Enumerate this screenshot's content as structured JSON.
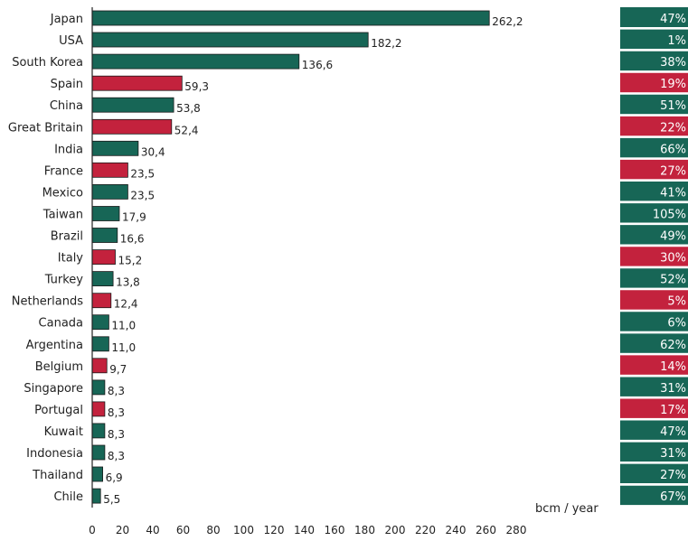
{
  "colors": {
    "green": "#176656",
    "red": "#c3223d",
    "axis": "#222222",
    "badge_text": "#ffffff",
    "text": "#222222"
  },
  "chart_data": {
    "type": "bar",
    "orientation": "horizontal",
    "title": "",
    "xlabel": "bcm / year",
    "ylabel": "",
    "xlim": [
      0,
      280
    ],
    "x_ticks": [
      "0",
      "20",
      "40",
      "60",
      "80",
      "100",
      "120",
      "140",
      "160",
      "180",
      "200",
      "220",
      "240",
      "260",
      "280"
    ],
    "grid": false,
    "legend": "none",
    "bars": [
      {
        "country": "Japan",
        "value": 262.2,
        "value_label": "262,2",
        "color": "green",
        "share": "47%"
      },
      {
        "country": "USA",
        "value": 182.2,
        "value_label": "182,2",
        "color": "green",
        "share": "1%"
      },
      {
        "country": "South Korea",
        "value": 136.6,
        "value_label": "136,6",
        "color": "green",
        "share": "38%"
      },
      {
        "country": "Spain",
        "value": 59.3,
        "value_label": "59,3",
        "color": "red",
        "share": "19%"
      },
      {
        "country": "China",
        "value": 53.8,
        "value_label": "53,8",
        "color": "green",
        "share": "51%"
      },
      {
        "country": "Great Britain",
        "value": 52.4,
        "value_label": "52,4",
        "color": "red",
        "share": "22%"
      },
      {
        "country": "India",
        "value": 30.4,
        "value_label": "30,4",
        "color": "green",
        "share": "66%"
      },
      {
        "country": "France",
        "value": 23.5,
        "value_label": "23,5",
        "color": "red",
        "share": "27%"
      },
      {
        "country": "Mexico",
        "value": 23.5,
        "value_label": "23,5",
        "color": "green",
        "share": "41%"
      },
      {
        "country": "Taiwan",
        "value": 17.9,
        "value_label": "17,9",
        "color": "green",
        "share": "105%"
      },
      {
        "country": "Brazil",
        "value": 16.6,
        "value_label": "16,6",
        "color": "green",
        "share": "49%"
      },
      {
        "country": "Italy",
        "value": 15.2,
        "value_label": "15,2",
        "color": "red",
        "share": "30%"
      },
      {
        "country": "Turkey",
        "value": 13.8,
        "value_label": "13,8",
        "color": "green",
        "share": "52%"
      },
      {
        "country": "Netherlands",
        "value": 12.4,
        "value_label": "12,4",
        "color": "red",
        "share": "5%"
      },
      {
        "country": "Canada",
        "value": 11.0,
        "value_label": "11,0",
        "color": "green",
        "share": "6%"
      },
      {
        "country": "Argentina",
        "value": 11.0,
        "value_label": "11,0",
        "color": "green",
        "share": "62%"
      },
      {
        "country": "Belgium",
        "value": 9.7,
        "value_label": "9,7",
        "color": "red",
        "share": "14%"
      },
      {
        "country": "Singapore",
        "value": 8.3,
        "value_label": "8,3",
        "color": "green",
        "share": "31%"
      },
      {
        "country": "Portugal",
        "value": 8.3,
        "value_label": "8,3",
        "color": "red",
        "share": "17%"
      },
      {
        "country": "Kuwait",
        "value": 8.3,
        "value_label": "8,3",
        "color": "green",
        "share": "47%"
      },
      {
        "country": "Indonesia",
        "value": 8.3,
        "value_label": "8,3",
        "color": "green",
        "share": "31%"
      },
      {
        "country": "Thailand",
        "value": 6.9,
        "value_label": "6,9",
        "color": "green",
        "share": "27%"
      },
      {
        "country": "Chile",
        "value": 5.5,
        "value_label": "5,5",
        "color": "green",
        "share": "67%"
      }
    ]
  }
}
